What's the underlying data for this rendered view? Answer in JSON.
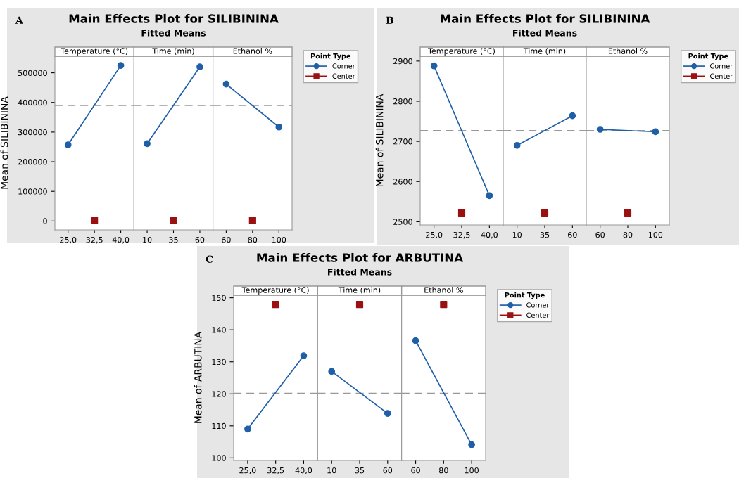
{
  "chart_data": [
    {
      "type": "line",
      "ylabel": "Mean of SILIBININA",
      "xlabel": "Temperature (°C)",
      "annotations": [
        "A"
      ],
      "categories": [
        "25,0",
        "32,5",
        "40,0"
      ],
      "series": [
        {
          "color": "#1f5fa8",
          "values": [
            257000,
            null,
            525000
          ]
        },
        {
          "type": "scatter",
          "marker": "square",
          "color": "#9b1111",
          "values": [
            null,
            2000,
            null
          ]
        }
      ],
      "marker": "circle",
      "ylim": [
        -30000,
        556000
      ],
      "yticks": [
        0,
        100000,
        200000,
        300000,
        400000,
        500000
      ],
      "ref_lines": [
        {
          "axis": "y",
          "value": 389700,
          "color": "#999999",
          "line_style": "dashed"
        }
      ],
      "grid": false,
      "legend": false
    },
    {
      "type": "line",
      "title": "Main Effects Plot for SILIBININA",
      "subtitle": "Fitted Means",
      "xlabel": "Time (min)",
      "categories": [
        "10",
        "35",
        "60"
      ],
      "series": [
        {
          "color": "#1f5fa8",
          "values": [
            261000,
            null,
            520000
          ]
        },
        {
          "type": "scatter",
          "marker": "square",
          "color": "#9b1111",
          "values": [
            null,
            2000,
            null
          ]
        }
      ],
      "marker": "circle",
      "ylim": [
        -30000,
        556000
      ],
      "tick_labels": "x",
      "ref_lines": [
        {
          "axis": "y",
          "value": 389700,
          "color": "#999999",
          "line_style": "dashed"
        }
      ],
      "grid": false,
      "legend": false
    },
    {
      "type": "line",
      "xlabel": "Ethanol %",
      "legend_title": "Point Type",
      "categories": [
        "60",
        "80",
        "100"
      ],
      "series": [
        {
          "name": "Corner",
          "color": "#1f5fa8",
          "values": [
            462000,
            null,
            317000
          ]
        },
        {
          "name": "Center",
          "type": "scatter",
          "marker": "square",
          "color": "#9b1111",
          "values": [
            null,
            2000,
            null
          ]
        }
      ],
      "marker": "circle",
      "ylim": [
        -30000,
        556000
      ],
      "tick_labels": "x",
      "ref_lines": [
        {
          "axis": "y",
          "value": 389700,
          "color": "#999999",
          "line_style": "dashed"
        }
      ],
      "grid": false,
      "legend": "right"
    },
    {
      "type": "line",
      "ylabel": "Mean of SILIBININA",
      "xlabel": "Temperature (°C)",
      "annotations": [
        "B"
      ],
      "categories": [
        "25,0",
        "32,5",
        "40,0"
      ],
      "series": [
        {
          "color": "#1f5fa8",
          "values": [
            2888,
            null,
            2565
          ]
        },
        {
          "type": "scatter",
          "marker": "square",
          "color": "#9b1111",
          "values": [
            null,
            2522,
            null
          ]
        }
      ],
      "marker": "circle",
      "ylim": [
        2492,
        2912
      ],
      "yticks": [
        2500,
        2600,
        2700,
        2800,
        2900
      ],
      "ref_lines": [
        {
          "axis": "y",
          "value": 2727,
          "color": "#999999",
          "line_style": "dashed"
        }
      ],
      "grid": false,
      "legend": false
    },
    {
      "type": "line",
      "title": "Main Effects Plot for SILIBININA",
      "subtitle": "Fitted Means",
      "xlabel": "Time (min)",
      "categories": [
        "10",
        "35",
        "60"
      ],
      "series": [
        {
          "color": "#1f5fa8",
          "values": [
            2690,
            null,
            2764
          ]
        },
        {
          "type": "scatter",
          "marker": "square",
          "color": "#9b1111",
          "values": [
            null,
            2522,
            null
          ]
        }
      ],
      "marker": "circle",
      "ylim": [
        2492,
        2912
      ],
      "tick_labels": "x",
      "ref_lines": [
        {
          "axis": "y",
          "value": 2727,
          "color": "#999999",
          "line_style": "dashed"
        }
      ],
      "grid": false,
      "legend": false
    },
    {
      "type": "line",
      "xlabel": "Ethanol %",
      "legend_title": "Point Type",
      "categories": [
        "60",
        "80",
        "100"
      ],
      "series": [
        {
          "name": "Corner",
          "color": "#1f5fa8",
          "values": [
            2730,
            null,
            2724
          ]
        },
        {
          "name": "Center",
          "type": "scatter",
          "marker": "square",
          "color": "#9b1111",
          "values": [
            null,
            2522,
            null
          ]
        }
      ],
      "marker": "circle",
      "ylim": [
        2492,
        2912
      ],
      "tick_labels": "x",
      "ref_lines": [
        {
          "axis": "y",
          "value": 2727,
          "color": "#999999",
          "line_style": "dashed"
        }
      ],
      "grid": false,
      "legend": "right"
    },
    {
      "type": "line",
      "ylabel": "Mean of ARBUTINA",
      "xlabel": "Temperature (°C)",
      "annotations": [
        "C"
      ],
      "categories": [
        "25,0",
        "32,5",
        "40,0"
      ],
      "series": [
        {
          "color": "#1f5fa8",
          "values": [
            109.0,
            null,
            131.9
          ]
        },
        {
          "type": "scatter",
          "marker": "square",
          "color": "#9b1111",
          "values": [
            null,
            147.9,
            null
          ]
        }
      ],
      "marker": "circle",
      "ylim": [
        99.2,
        150.8
      ],
      "yticks": [
        100,
        110,
        120,
        130,
        140,
        150
      ],
      "ref_lines": [
        {
          "axis": "y",
          "value": 120.2,
          "color": "#999999",
          "line_style": "dashed"
        }
      ],
      "grid": false,
      "legend": false
    },
    {
      "type": "line",
      "title": "Main Effects Plot for ARBUTINA",
      "subtitle": "Fitted Means",
      "xlabel": "Time (min)",
      "categories": [
        "10",
        "35",
        "60"
      ],
      "series": [
        {
          "color": "#1f5fa8",
          "values": [
            127.0,
            null,
            113.9
          ]
        },
        {
          "type": "scatter",
          "marker": "square",
          "color": "#9b1111",
          "values": [
            null,
            147.9,
            null
          ]
        }
      ],
      "marker": "circle",
      "ylim": [
        99.2,
        150.8
      ],
      "tick_labels": "x",
      "ref_lines": [
        {
          "axis": "y",
          "value": 120.2,
          "color": "#999999",
          "line_style": "dashed"
        }
      ],
      "grid": false,
      "legend": false
    },
    {
      "type": "line",
      "xlabel": "Ethanol %",
      "legend_title": "Point Type",
      "categories": [
        "60",
        "80",
        "100"
      ],
      "series": [
        {
          "name": "Corner",
          "color": "#1f5fa8",
          "values": [
            136.6,
            null,
            104.1
          ]
        },
        {
          "name": "Center",
          "type": "scatter",
          "marker": "square",
          "color": "#9b1111",
          "values": [
            null,
            147.9,
            null
          ]
        }
      ],
      "marker": "circle",
      "ylim": [
        99.2,
        150.8
      ],
      "tick_labels": "x",
      "ref_lines": [
        {
          "axis": "y",
          "value": 120.2,
          "color": "#999999",
          "line_style": "dashed"
        }
      ],
      "grid": false,
      "legend": "right"
    }
  ]
}
